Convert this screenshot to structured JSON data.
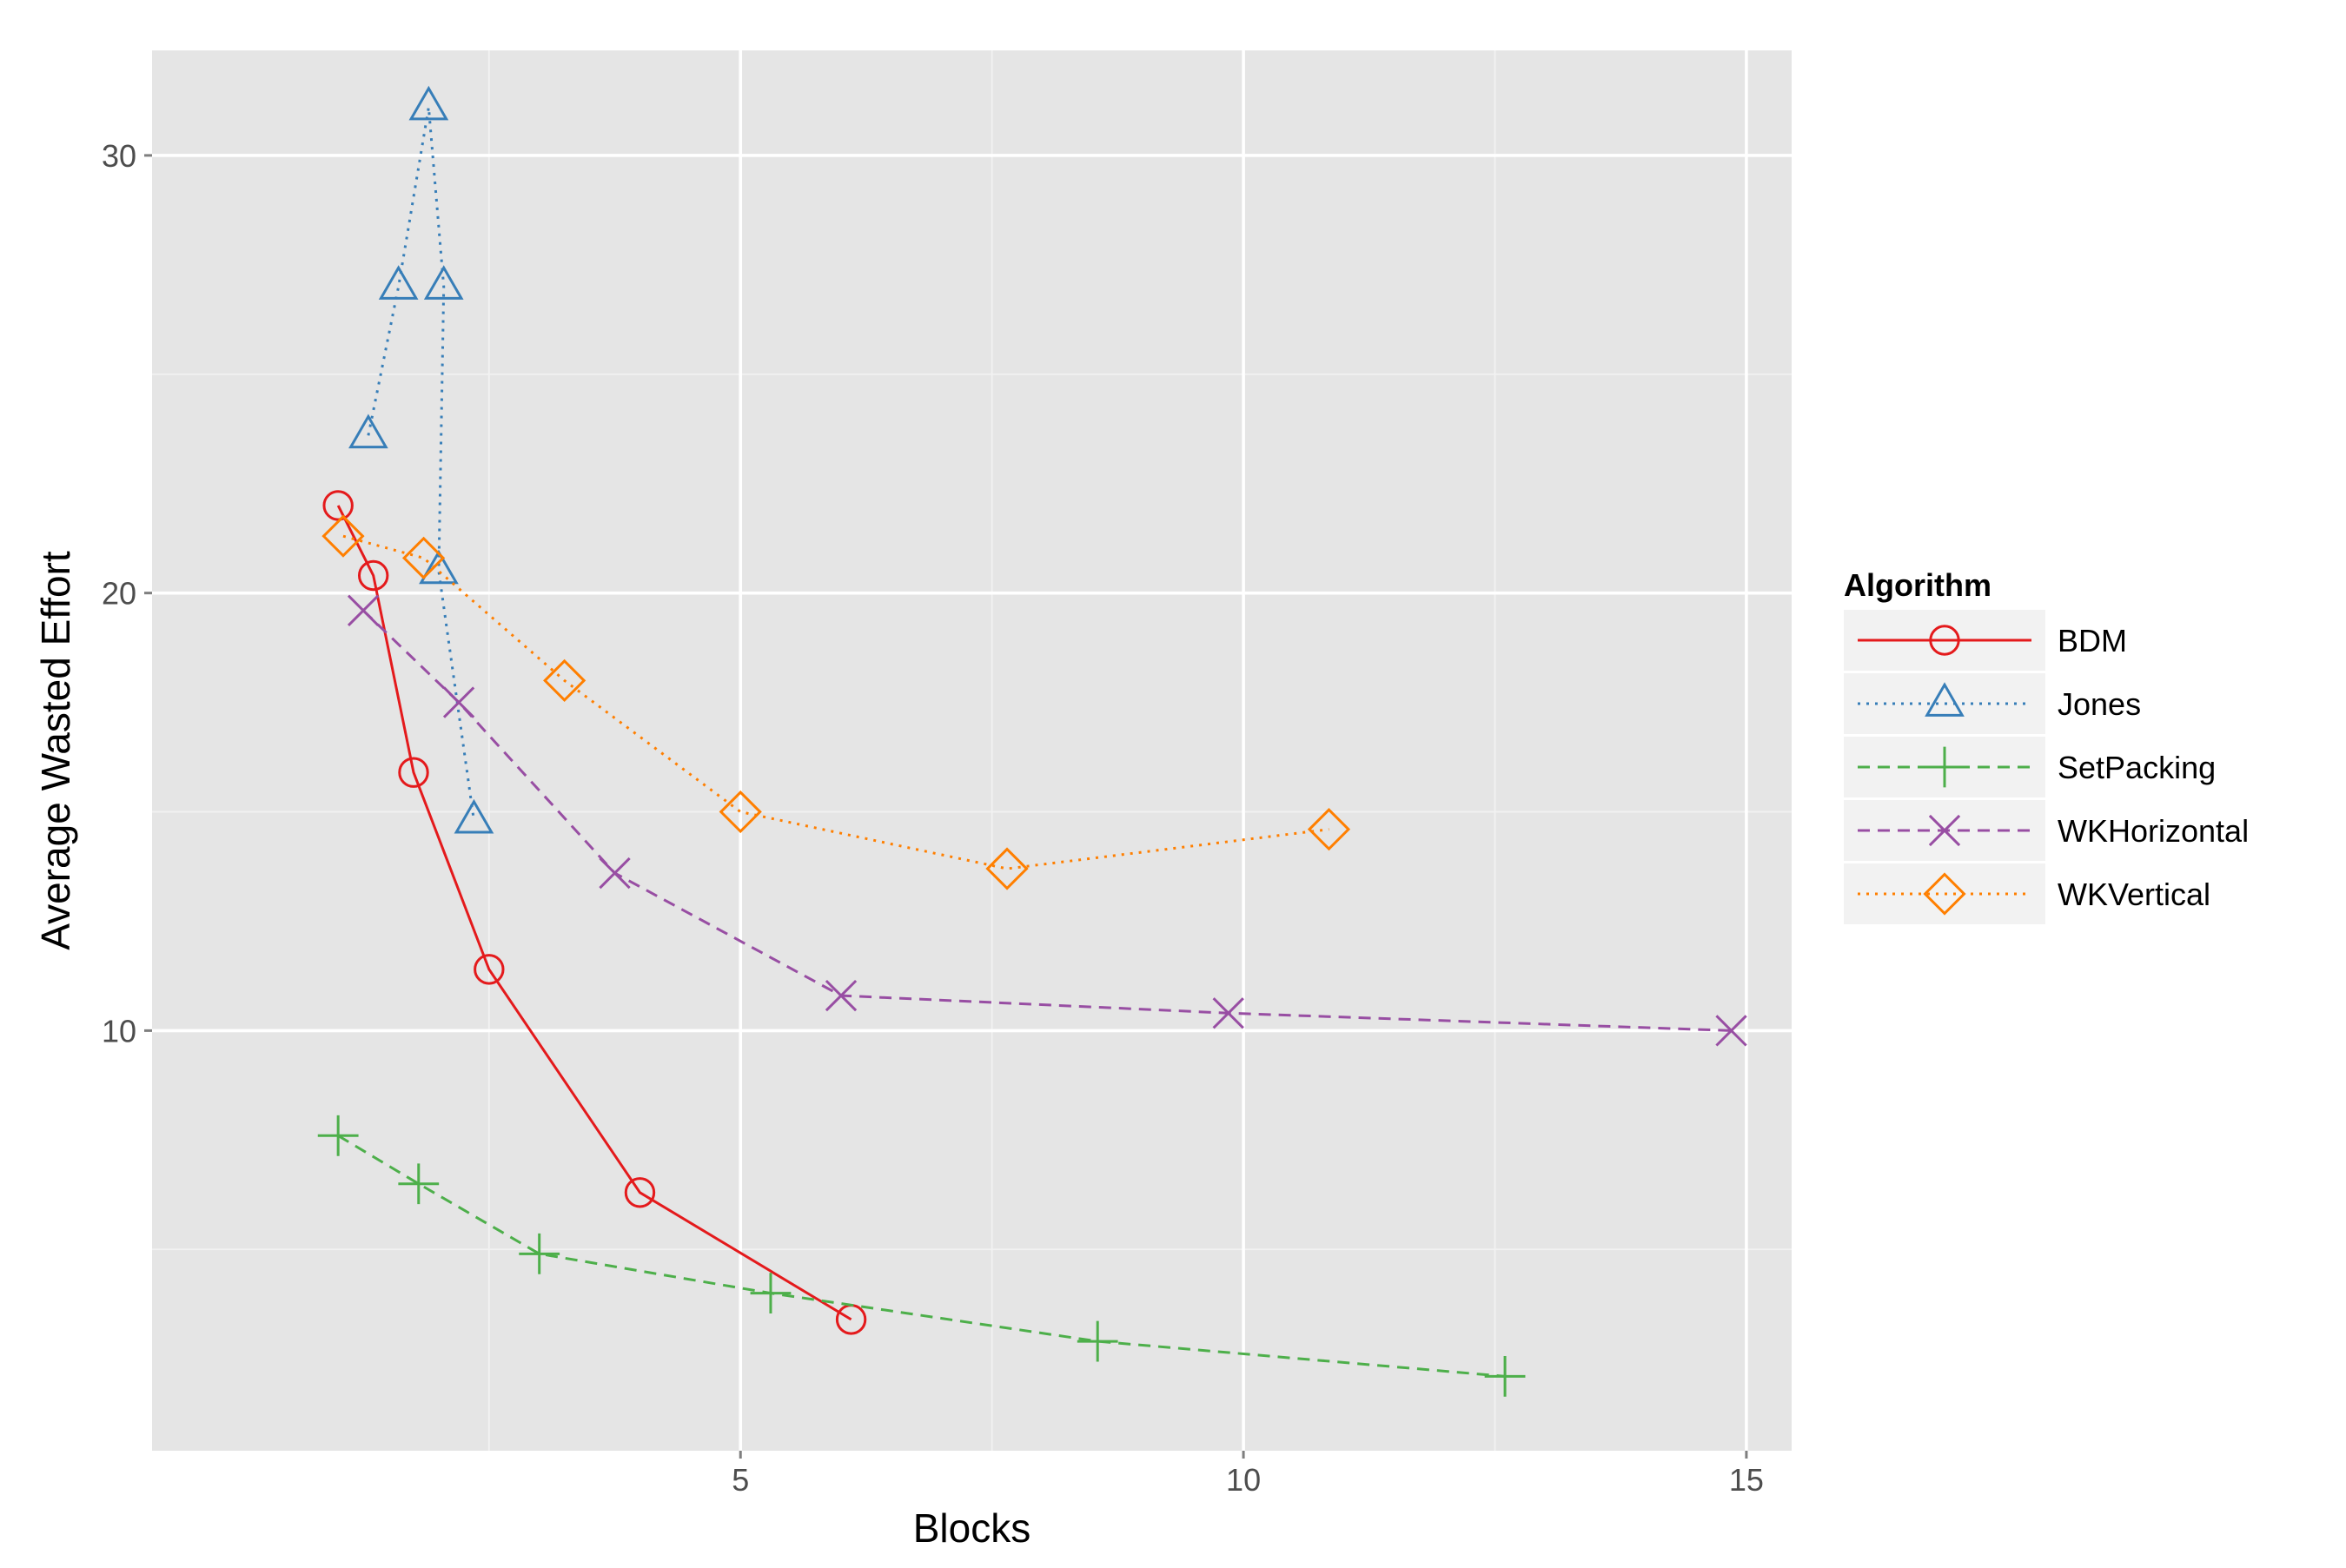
{
  "chart_data": {
    "type": "line",
    "xlabel": "Blocks",
    "ylabel": "Average Wasted Effort",
    "xlim": [
      -0.85,
      15.45
    ],
    "ylim": [
      0.4,
      32.4
    ],
    "xticks": [
      5,
      10,
      15
    ],
    "yticks": [
      10,
      20,
      30
    ],
    "xminor": [
      2.5,
      7.5,
      12.5
    ],
    "yminor": [
      5,
      15,
      25
    ],
    "grid": true,
    "legend": {
      "title": "Algorithm",
      "position": "right"
    },
    "series": [
      {
        "name": "BDM",
        "color": "#e41a1c",
        "shape": "circle",
        "linetype": "solid",
        "points": [
          [
            1.0,
            22.0
          ],
          [
            1.35,
            20.4
          ],
          [
            1.75,
            15.9
          ],
          [
            2.5,
            11.4
          ],
          [
            4.0,
            6.3
          ],
          [
            6.1,
            3.4
          ]
        ]
      },
      {
        "name": "Jones",
        "color": "#377eb8",
        "shape": "triangle",
        "linetype": "dotted",
        "points": [
          [
            1.3,
            23.6
          ],
          [
            1.6,
            27.0
          ],
          [
            1.9,
            31.1
          ],
          [
            2.05,
            27.0
          ],
          [
            2.0,
            20.5
          ],
          [
            2.35,
            14.8
          ]
        ]
      },
      {
        "name": "SetPacking",
        "color": "#4daf4a",
        "shape": "plus",
        "linetype": "dashed",
        "points": [
          [
            1.0,
            7.6
          ],
          [
            1.8,
            6.5
          ],
          [
            3.0,
            4.9
          ],
          [
            5.3,
            4.0
          ],
          [
            8.55,
            2.9
          ],
          [
            12.6,
            2.1
          ]
        ]
      },
      {
        "name": "WKHorizontal",
        "color": "#984ea3",
        "shape": "x",
        "linetype": "dashed",
        "points": [
          [
            1.25,
            19.6
          ],
          [
            2.2,
            17.5
          ],
          [
            3.75,
            13.6
          ],
          [
            6.0,
            10.8
          ],
          [
            9.85,
            10.4
          ],
          [
            14.85,
            10.0
          ]
        ]
      },
      {
        "name": "WKVertical",
        "color": "#ff7f00",
        "shape": "diamond",
        "linetype": "dotted",
        "points": [
          [
            1.05,
            21.3
          ],
          [
            1.85,
            20.8
          ],
          [
            3.25,
            18.0
          ],
          [
            5.0,
            15.0
          ],
          [
            7.65,
            13.7
          ],
          [
            10.85,
            14.6
          ]
        ]
      }
    ]
  }
}
